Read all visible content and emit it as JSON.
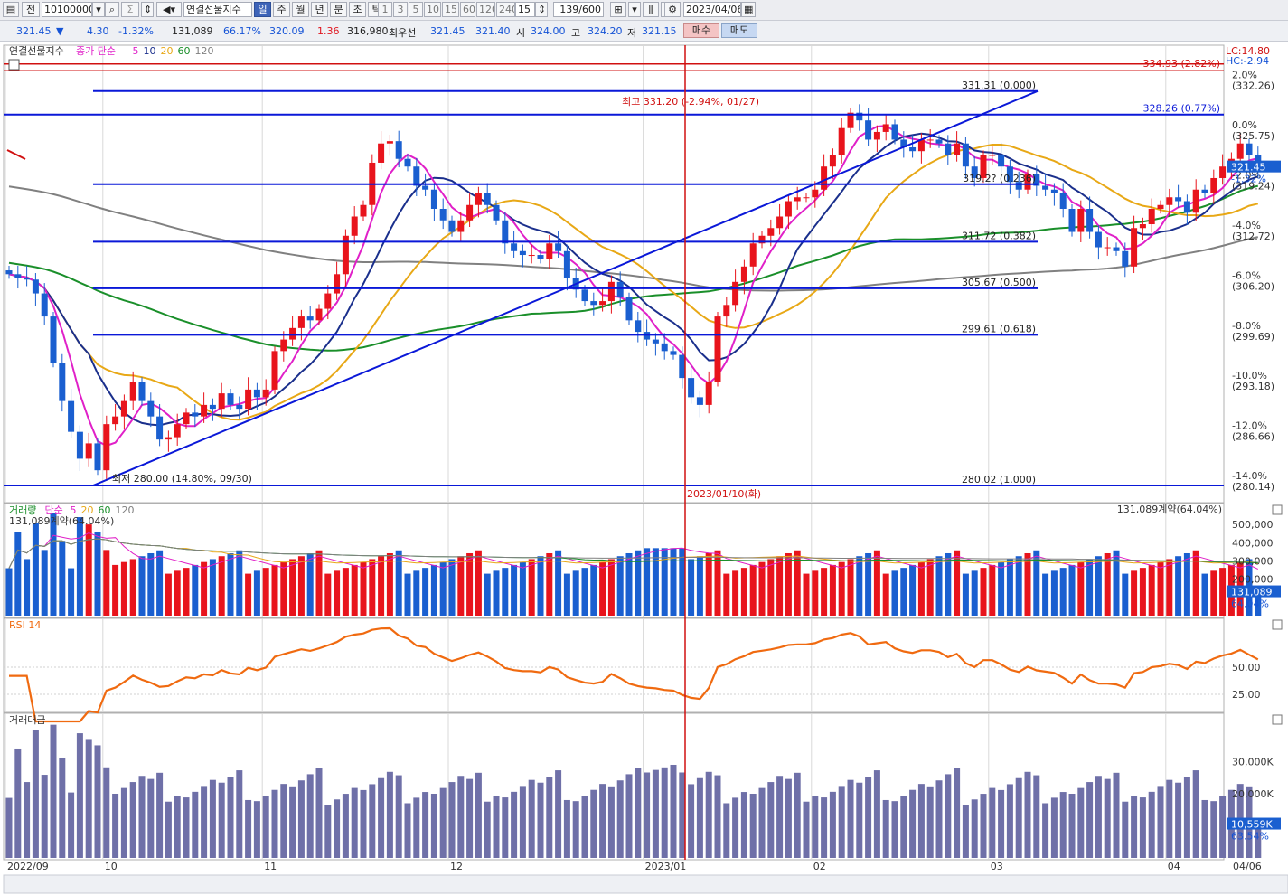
{
  "toolbar": {
    "code_prefix": "전",
    "code": "10100000",
    "name": "연결선물지수",
    "periods": [
      "일",
      "주",
      "월",
      "년",
      "분",
      "초",
      "틱"
    ],
    "active_period": "일",
    "intervals": [
      "1",
      "3",
      "5",
      "10",
      "15",
      "60",
      "120",
      "240"
    ],
    "interval_value": "15",
    "count": "139/600",
    "date": "2023/04/06"
  },
  "quote": {
    "price": "321.45",
    "direction": "▼",
    "change": "4.30",
    "change_pct": "-1.32%",
    "volume": "131,089",
    "volume_pct": "66.17%",
    "value1": "320.09",
    "value2": "1.36",
    "value3": "316,980",
    "label_best": "최우선",
    "best1": "321.45",
    "best2": "321.40",
    "open_label": "시",
    "open": "324.00",
    "high_label": "고",
    "high": "324.20",
    "low_label": "저",
    "low": "321.15",
    "buy_label": "매수",
    "sell_label": "매도"
  },
  "price_panel": {
    "legend_name": "연결선물지수",
    "legend_type": "종가 단순",
    "ma_periods": [
      "5",
      "10",
      "20",
      "60",
      "120"
    ],
    "right_top_lc": "LC:14.80",
    "right_top_hc": "HC:-2.94",
    "last_price_tag": "321.45",
    "last_pct_tag": "-1.32%",
    "axis_labels": [
      {
        "pct": "2.0%",
        "val": "(332.26)"
      },
      {
        "pct": "0.0%",
        "val": "(325.75)"
      },
      {
        "pct": "-2.0%",
        "val": "(319.24)"
      },
      {
        "pct": "-4.0%",
        "val": "(312.72)"
      },
      {
        "pct": "-6.0%",
        "val": "(306.20)"
      },
      {
        "pct": "-8.0%",
        "val": "(299.69)"
      },
      {
        "pct": "-10.0%",
        "val": "(293.18)"
      },
      {
        "pct": "-12.0%",
        "val": "(286.66)"
      },
      {
        "pct": "-14.0%",
        "val": "(280.14)"
      }
    ],
    "fib_labels": [
      "331.31 (0.000)",
      "319.2? (0.236)",
      "311.72 (0.382)",
      "305.67 (0.500)",
      "299.61 (0.618)",
      "280.02 (1.000)"
    ],
    "limit_upper_label": "334.93 (2.82%)",
    "line_328_label": "328.26 (0.77%)",
    "high_note": "최고 331.20 (-2.94%, 01/27)",
    "low_note": "최저 280.00 (14.80%, 09/30)",
    "crosshair_date": "2023/01/10(화)"
  },
  "volume_panel": {
    "legend_name": "거래량",
    "legend_type": "단순",
    "ma_periods": [
      "5",
      "20",
      "60",
      "120"
    ],
    "current": "131,089계약(64.04%)",
    "right_current": "131,089계약(64.04%)",
    "axis_labels": [
      "500,000",
      "400,000",
      "300,000",
      "200,000"
    ],
    "tag_value": "131,089",
    "tag_pct": "64.04%"
  },
  "rsi_panel": {
    "legend": "RSI 14",
    "axis_labels": [
      "50.00",
      "25.00"
    ]
  },
  "amount_panel": {
    "legend": "거래대금",
    "axis_labels": [
      "30,000K",
      "20,000K"
    ],
    "tag_value": "10,559K",
    "tag_pct": "63.54%"
  },
  "x_axis": {
    "labels": [
      "2022/09",
      "10",
      "11",
      "12",
      "2023/01",
      "02",
      "03",
      "04"
    ],
    "right_label": "04/06"
  },
  "chart_data": {
    "type": "candlestick",
    "title": "연결선물지수",
    "ylim": [
      280.14,
      334.93
    ],
    "reference_close": 325.75,
    "candles_close": [
      307.5,
      307.0,
      306.8,
      305.0,
      302.0,
      296.0,
      291.0,
      287.0,
      283.5,
      285.5,
      282.0,
      288.0,
      289.0,
      291.0,
      293.5,
      291.0,
      289.0,
      286.0,
      286.3,
      288.0,
      289.5,
      289.0,
      290.5,
      290.0,
      292.0,
      290.5,
      290.0,
      292.5,
      291.5,
      292.5,
      297.5,
      299.0,
      300.5,
      302.0,
      301.5,
      303.0,
      305.0,
      307.5,
      312.5,
      315.0,
      316.5,
      322.0,
      324.5,
      324.8,
      322.5,
      321.5,
      319.0,
      318.5,
      316.0,
      314.5,
      313.0,
      314.5,
      316.5,
      318.0,
      316.5,
      314.5,
      311.5,
      310.5,
      310.0,
      310.0,
      309.5,
      311.5,
      310.5,
      307.0,
      305.5,
      304.0,
      303.5,
      304.0,
      306.5,
      304.5,
      301.5,
      300.0,
      299.0,
      298.5,
      297.5,
      297.0,
      294.0,
      291.5,
      290.5,
      293.5,
      302.0,
      303.5,
      306.5,
      308.5,
      311.5,
      312.5,
      313.5,
      315.0,
      317.0,
      317.5,
      317.5,
      318.5,
      321.5,
      323.0,
      326.5,
      328.5,
      327.5,
      325.0,
      326.0,
      327.0,
      325.0,
      324.0,
      323.5,
      325.0,
      325.0,
      324.5,
      323.0,
      324.5,
      321.5,
      320.0,
      323.0,
      323.0,
      321.5,
      319.5,
      318.5,
      320.5,
      319.0,
      318.5,
      318.0,
      316.0,
      313.0,
      316.0,
      313.0,
      311.0,
      311.0,
      310.5,
      308.5,
      313.5,
      314.0,
      316.0,
      316.5,
      317.5,
      317.0,
      315.5,
      318.5,
      318.0,
      320.0,
      321.5,
      322.5,
      324.5,
      323.0,
      321.45
    ],
    "limit_upper": 334.93,
    "fib_levels": [
      331.31,
      319.2,
      311.72,
      305.67,
      299.61,
      280.02
    ],
    "series": [
      {
        "name": "5",
        "color": "#e020c8"
      },
      {
        "name": "10",
        "color": "#1a2f8c"
      },
      {
        "name": "20",
        "color": "#e8a816"
      },
      {
        "name": "60",
        "color": "#1a8f2a"
      },
      {
        "name": "120",
        "color": "#808080"
      }
    ]
  },
  "colors": {
    "up": "#e8141c",
    "down": "#1a5fd0",
    "fib": "#0a18d8",
    "crosshair": "#d01010",
    "rsi": "#f06a10",
    "amount": "#6f70a8"
  }
}
